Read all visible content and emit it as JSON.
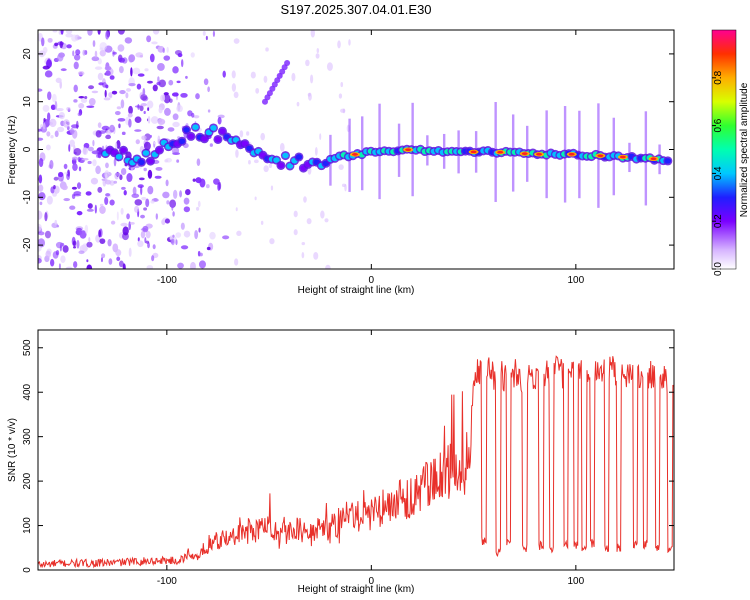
{
  "title": "S197.2025.307.04.01.E30",
  "chart_data": [
    {
      "type": "heatmap",
      "name": "spectrogram",
      "xlabel": "Height of straight line (km)",
      "ylabel": "Frequency (Hz)",
      "xlim": [
        -163,
        148
      ],
      "ylim": [
        -25,
        25
      ],
      "x_ticks": [
        -100,
        0,
        100
      ],
      "y_ticks": [
        -20,
        -10,
        0,
        10,
        20
      ],
      "colorbar": {
        "label": "Normalized spectral amplitude",
        "range": [
          0,
          1
        ],
        "ticks": [
          0.0,
          0.2,
          0.4,
          0.6,
          0.8
        ]
      },
      "ridge": {
        "x": [
          -130,
          -110,
          -95,
          -85,
          -75,
          -65,
          -55,
          -45,
          -35,
          -25,
          -15,
          0,
          20,
          40,
          60,
          80,
          100,
          120,
          140,
          148
        ],
        "frequency": [
          -1.5,
          -1.5,
          2,
          4,
          3,
          1,
          -1,
          -2,
          -3,
          -3,
          -1.5,
          -0.5,
          0,
          -0.5,
          -0.5,
          -1,
          -1,
          -1.5,
          -2,
          -2.5
        ]
      }
    },
    {
      "type": "line",
      "name": "snr",
      "xlabel": "Height of straight line (km)",
      "ylabel": "SNR (10 * v/v)",
      "xlim": [
        -163,
        148
      ],
      "ylim": [
        0,
        540
      ],
      "x_ticks": [
        -100,
        0,
        100
      ],
      "y_ticks": [
        0,
        100,
        200,
        300,
        400,
        500
      ],
      "series": [
        {
          "name": "SNR",
          "color": "#e8302a",
          "x": [
            -163,
            -150,
            -140,
            -130,
            -120,
            -110,
            -100,
            -95,
            -90,
            -85,
            -80,
            -75,
            -70,
            -65,
            -60,
            -55,
            -50,
            -45,
            -40,
            -35,
            -30,
            -25,
            -20,
            -15,
            -10,
            -5,
            0,
            5,
            10,
            15,
            20,
            25,
            30,
            35,
            40,
            45,
            48,
            50,
            52,
            55,
            60,
            65,
            70,
            75,
            80,
            85,
            90,
            95,
            100,
            105,
            110,
            115,
            120,
            125,
            130,
            135,
            140,
            145,
            148
          ],
          "y": [
            12,
            15,
            15,
            16,
            18,
            20,
            22,
            20,
            30,
            25,
            45,
            60,
            60,
            70,
            75,
            80,
            90,
            70,
            75,
            80,
            65,
            80,
            85,
            100,
            105,
            100,
            115,
            120,
            130,
            140,
            150,
            160,
            170,
            180,
            200,
            210,
            220,
            430,
            440,
            450,
            440,
            435,
            445,
            430,
            440,
            445,
            450,
            440,
            445,
            430,
            440,
            450,
            445,
            440,
            445,
            435,
            440,
            430,
            440
          ],
          "drops": [
            {
              "x": 55,
              "y": 55
            },
            {
              "x": 62,
              "y": 30
            },
            {
              "x": 67,
              "y": 50
            },
            {
              "x": 75,
              "y": 40
            },
            {
              "x": 83,
              "y": 45
            },
            {
              "x": 88,
              "y": 40
            },
            {
              "x": 95,
              "y": 45
            },
            {
              "x": 100,
              "y": 45
            },
            {
              "x": 104,
              "y": 40
            },
            {
              "x": 108,
              "y": 50
            },
            {
              "x": 115,
              "y": 40
            },
            {
              "x": 121,
              "y": 40
            },
            {
              "x": 129,
              "y": 45
            },
            {
              "x": 134,
              "y": 45
            },
            {
              "x": 140,
              "y": 40
            },
            {
              "x": 146,
              "y": 40
            }
          ]
        }
      ]
    }
  ]
}
